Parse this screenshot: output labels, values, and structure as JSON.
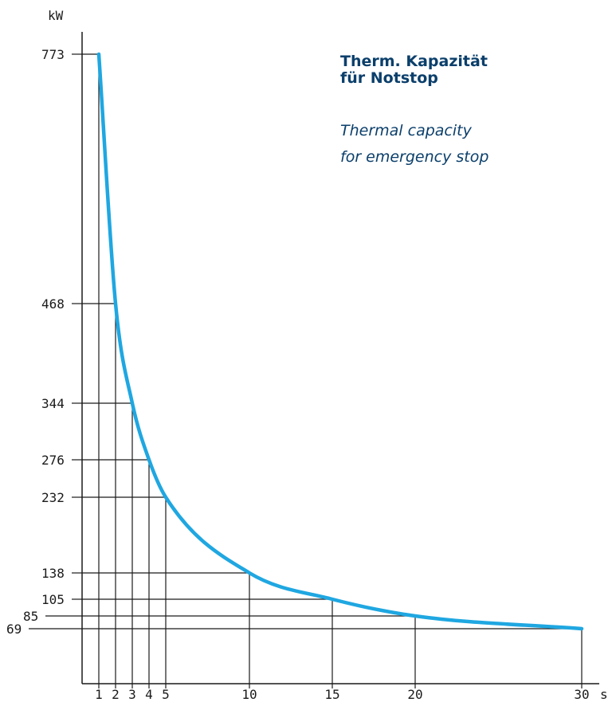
{
  "chart_data": {
    "type": "line",
    "title_de": [
      "Therm. Kapazität",
      "für Notstop"
    ],
    "title_en": [
      "Thermal capacity",
      "for emergency stop"
    ],
    "xlabel": "s",
    "ylabel": "kW",
    "x_ticks": [
      1,
      2,
      3,
      4,
      5,
      10,
      15,
      20,
      30
    ],
    "y_ticks": [
      69,
      85,
      105,
      138,
      232,
      276,
      344,
      468,
      773
    ],
    "series": [
      {
        "color": "#1fa7e1",
        "x": [
          1,
          2,
          3,
          4,
          5,
          10,
          15,
          20,
          30
        ],
        "y": [
          773,
          468,
          344,
          276,
          232,
          138,
          105,
          85,
          69
        ]
      }
    ],
    "colors": {
      "curve": "#1fa7e1",
      "title": "#0b3f6b",
      "axis": "#1a1a1a"
    },
    "grid": "drop-lines"
  }
}
